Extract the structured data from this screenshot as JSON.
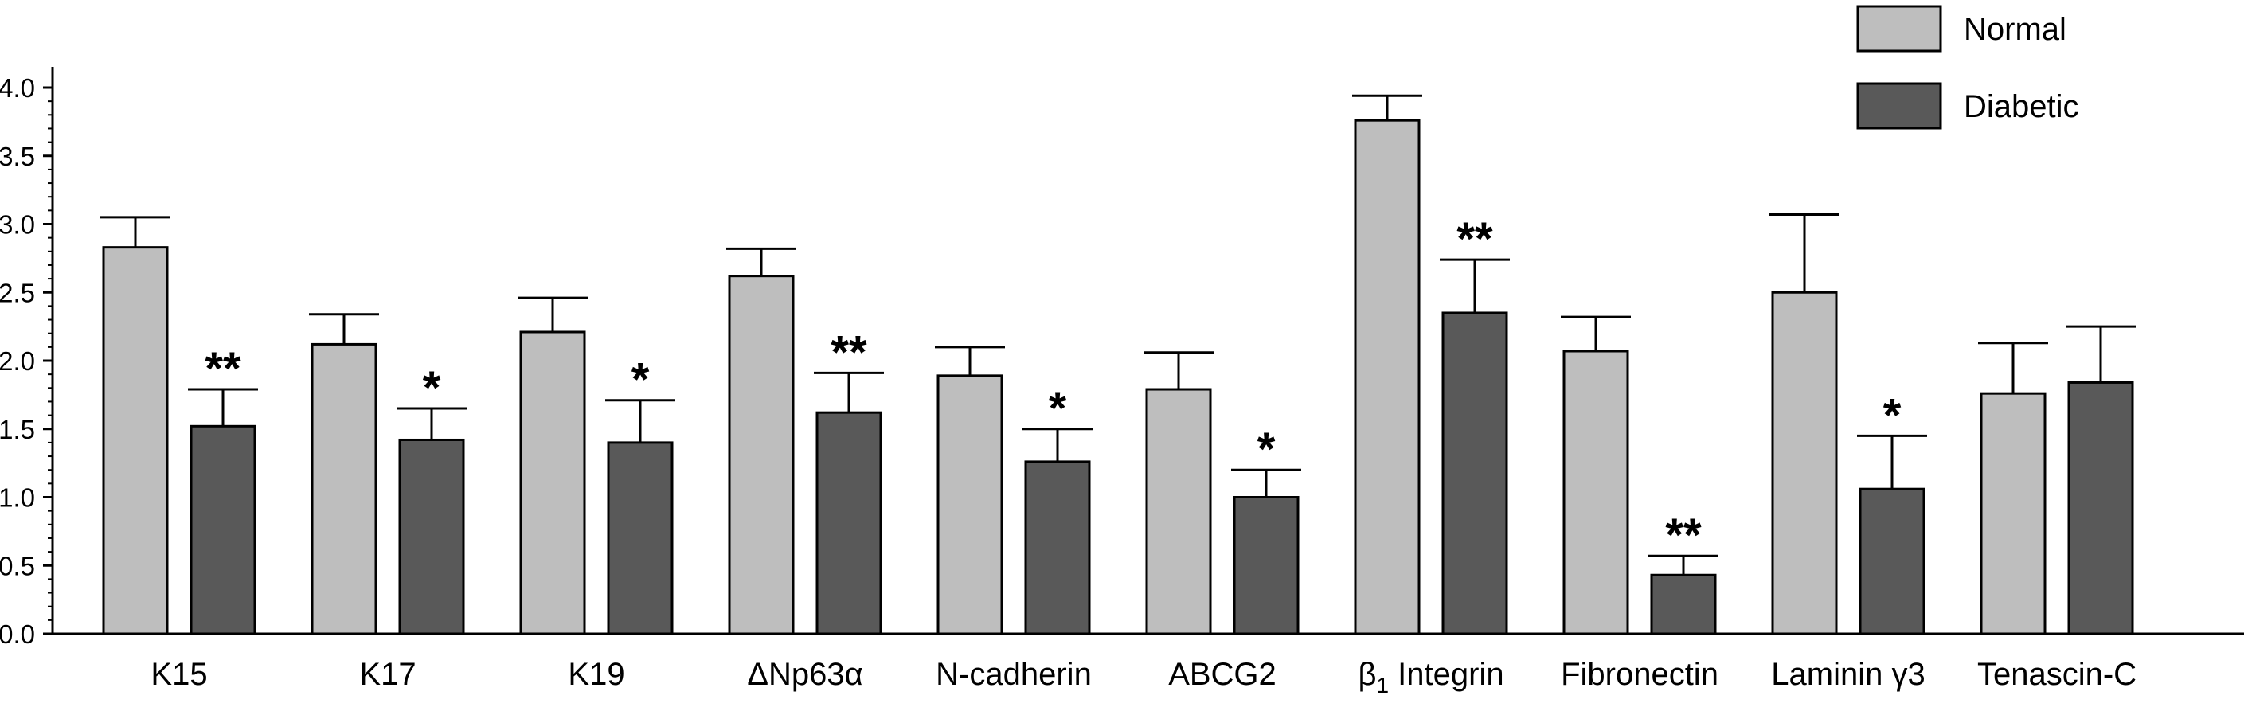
{
  "chart_data": {
    "type": "bar",
    "categories": [
      "K15",
      "K17",
      "K19",
      "ΔNp63α",
      "N-cadherin",
      "ABCG2",
      "β1 Integrin",
      "Fibronectin",
      "Laminin γ3",
      "Tenascin-C"
    ],
    "category_labels": [
      {
        "main": "K15"
      },
      {
        "main": "K17"
      },
      {
        "main": "K19"
      },
      {
        "main": "ΔNp63α"
      },
      {
        "main": "N-cadherin"
      },
      {
        "main": "ABCG2"
      },
      {
        "main": "β",
        "sub": "1",
        "rest": " Integrin"
      },
      {
        "main": "Fibronectin"
      },
      {
        "main": "Laminin γ3"
      },
      {
        "main": "Tenascin-C"
      }
    ],
    "series": [
      {
        "name": "Normal",
        "color": "#bebebe",
        "values": [
          2.83,
          2.12,
          2.21,
          2.62,
          1.89,
          1.79,
          3.76,
          2.07,
          2.5,
          1.76
        ],
        "errors": [
          0.22,
          0.22,
          0.25,
          0.2,
          0.21,
          0.27,
          0.18,
          0.25,
          0.57,
          0.37
        ]
      },
      {
        "name": "Diabetic",
        "color": "#595959",
        "values": [
          1.52,
          1.42,
          1.4,
          1.62,
          1.26,
          1.0,
          2.35,
          0.43,
          1.06,
          1.84
        ],
        "errors": [
          0.27,
          0.23,
          0.31,
          0.29,
          0.24,
          0.2,
          0.39,
          0.14,
          0.39,
          0.41
        ]
      }
    ],
    "significance": [
      "**",
      "*",
      "*",
      "**",
      "*",
      "*",
      "**",
      "**",
      "*",
      ""
    ],
    "ylim": [
      0,
      4.1
    ],
    "yticks": [
      "0.0",
      "0.5",
      "1.0",
      "1.5",
      "2.0",
      "2.5",
      "3.0",
      "3.5",
      "4.0"
    ],
    "xlabel": "",
    "ylabel": "",
    "title": "",
    "legend": {
      "position": "top-right"
    },
    "grid": false
  }
}
